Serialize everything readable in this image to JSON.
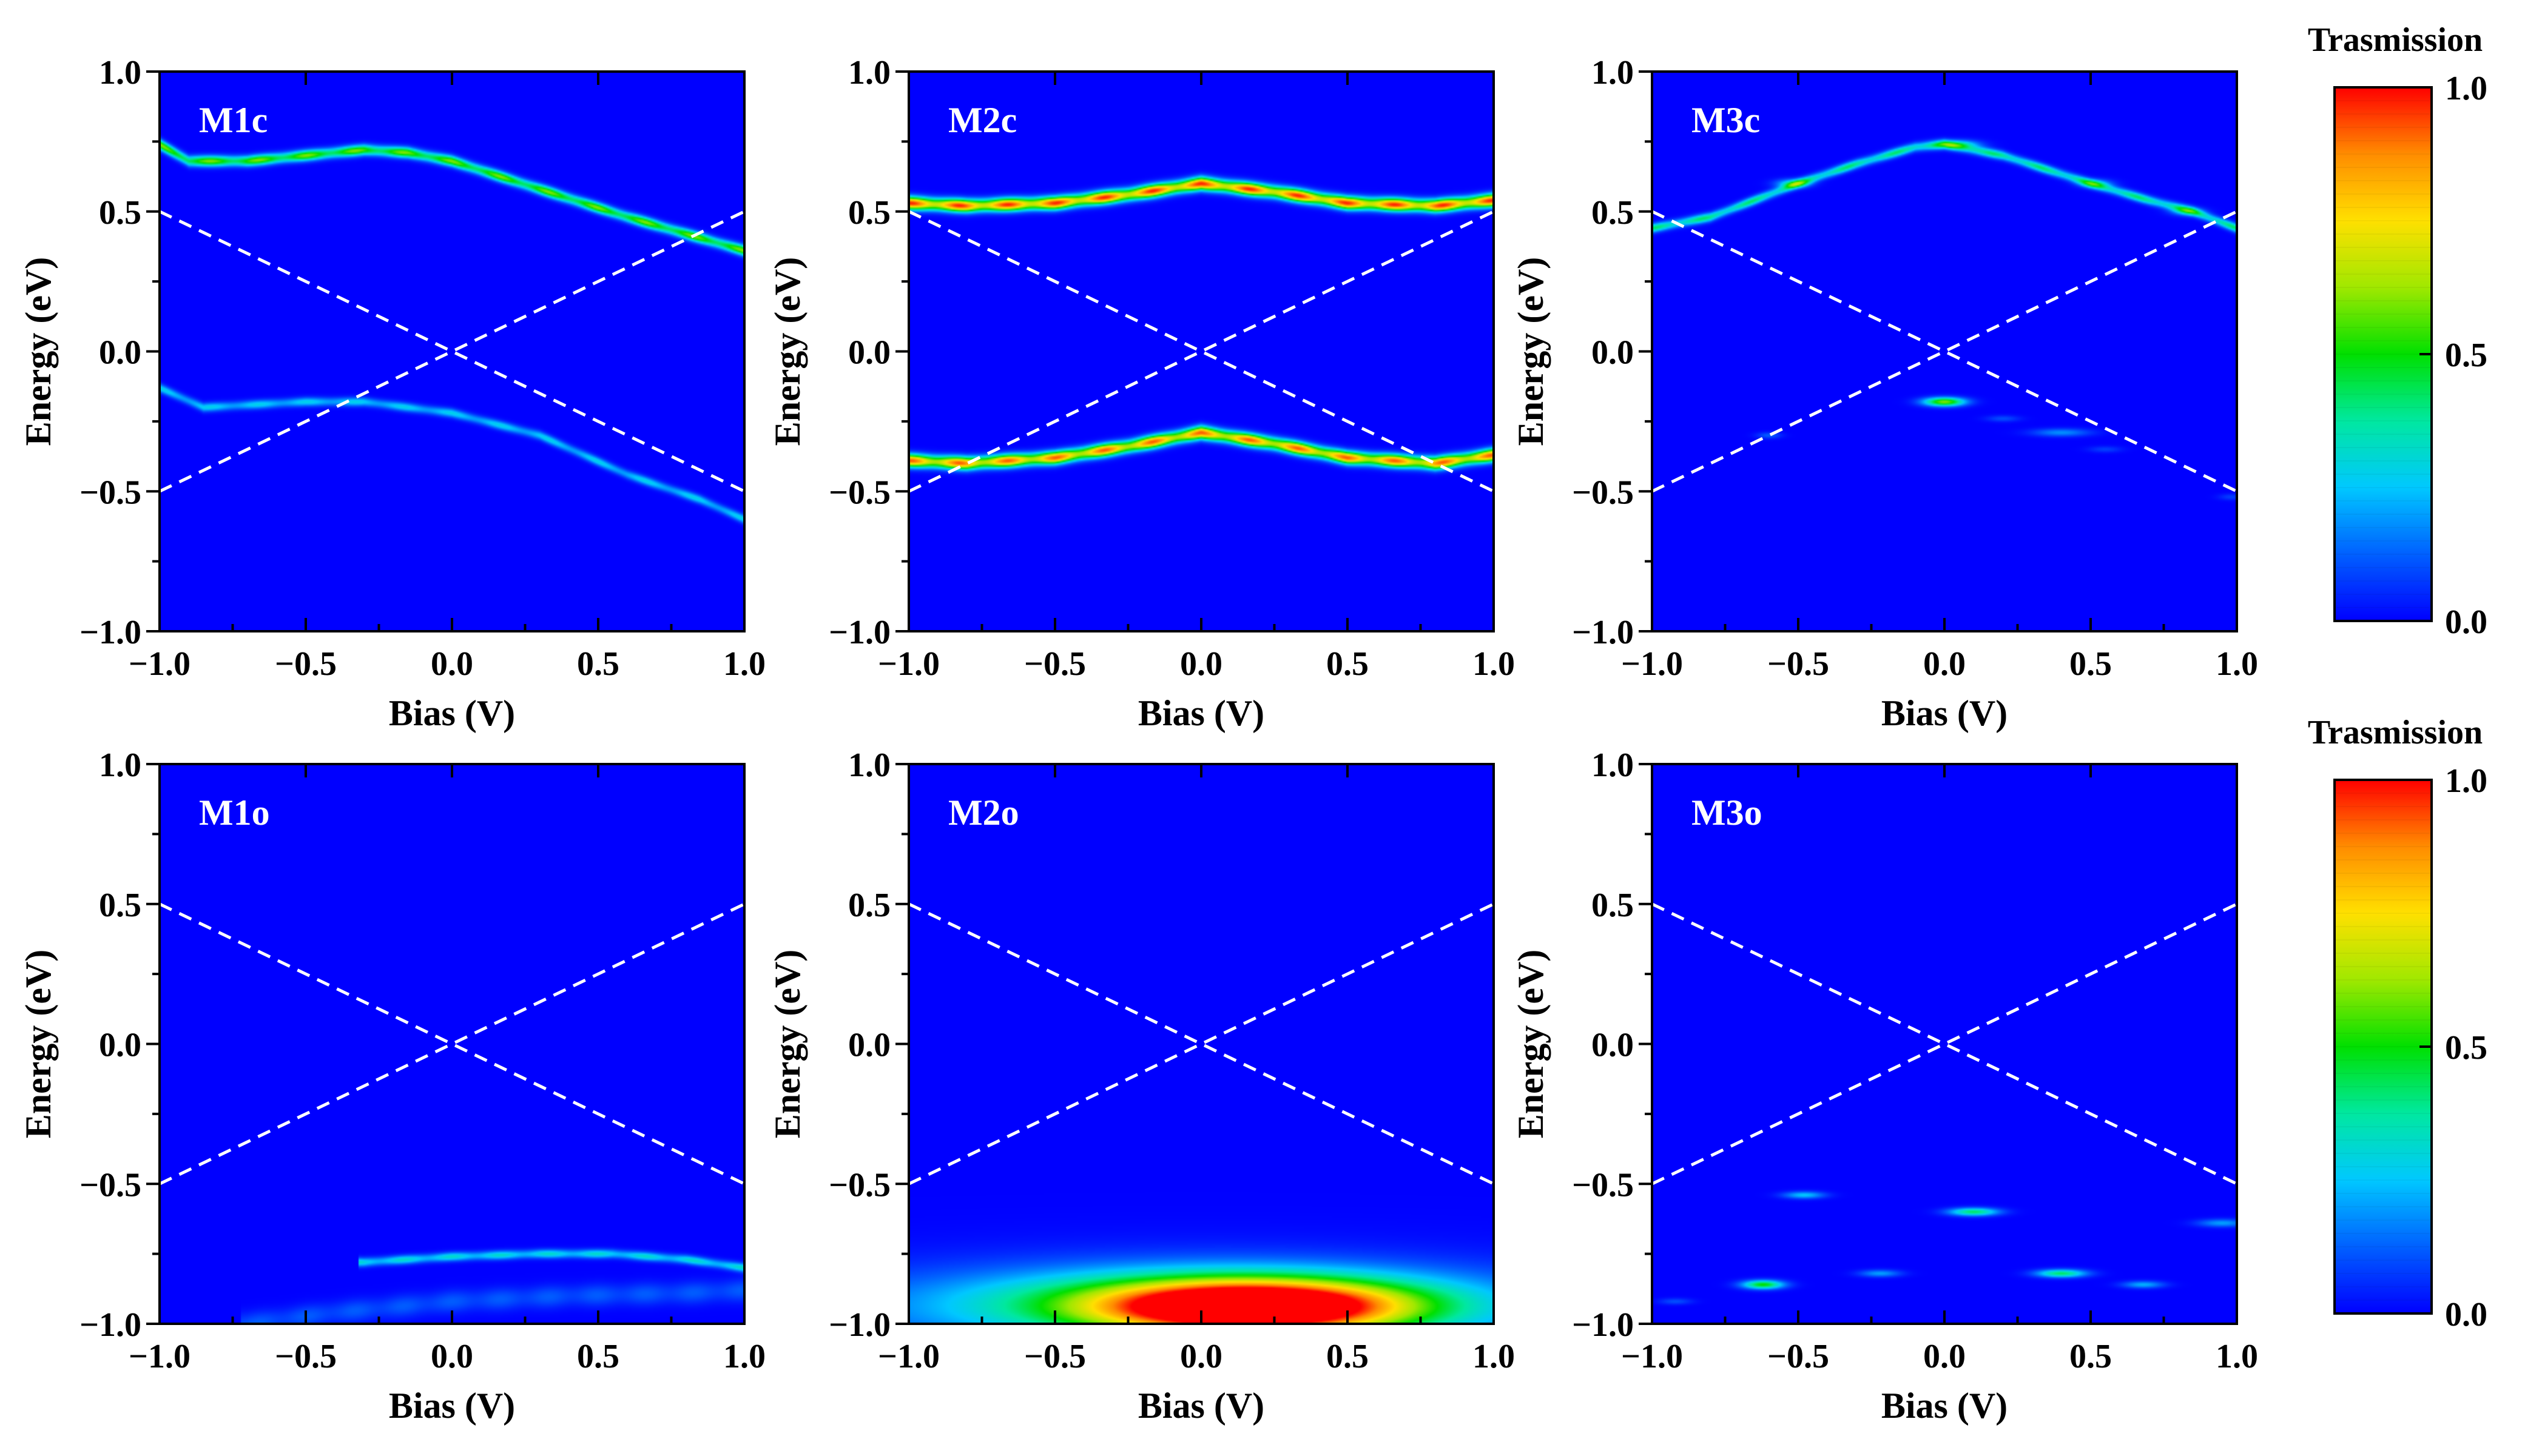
{
  "figure": {
    "colormap_stops": [
      "#0000ff",
      "#0060ff",
      "#00c8ff",
      "#00e8a0",
      "#00e000",
      "#a0e800",
      "#ffe000",
      "#ff8c00",
      "#ff0000"
    ],
    "dashed_line_color": "#ffffff"
  },
  "colorbars": [
    {
      "title": "Trasmission",
      "ticks": [
        {
          "value": 0.0,
          "label": "0.0"
        },
        {
          "value": 0.5,
          "label": "0.5"
        },
        {
          "value": 1.0,
          "label": "1.0"
        }
      ],
      "range": [
        0,
        1
      ]
    },
    {
      "title": "Trasmission",
      "ticks": [
        {
          "value": 0.0,
          "label": "0.0"
        },
        {
          "value": 0.5,
          "label": "0.5"
        },
        {
          "value": 1.0,
          "label": "1.0"
        }
      ],
      "range": [
        0,
        1
      ]
    }
  ],
  "chart_data": [
    {
      "type": "heatmap",
      "id": "M1c",
      "panel_label": "M1c",
      "xlabel": "Bias (V)",
      "ylabel": "Energy (eV)",
      "xlim": [
        -1,
        1
      ],
      "ylim": [
        -1,
        1
      ],
      "xticks": [
        "−1.0",
        "−0.5",
        "0.0",
        "0.5",
        "1.0"
      ],
      "yticks": [
        "−1.0",
        "−0.5",
        "0.0",
        "0.5",
        "1.0"
      ],
      "bias_window": [
        {
          "from": [
            -1,
            0.5
          ],
          "to": [
            1,
            -0.5
          ]
        },
        {
          "from": [
            -1,
            -0.5
          ],
          "to": [
            1,
            0.5
          ]
        }
      ],
      "features": [
        {
          "kind": "band",
          "points": [
            [
              -1.0,
              0.74
            ],
            [
              -0.9,
              0.68
            ],
            [
              -0.7,
              0.68
            ],
            [
              -0.5,
              0.7
            ],
            [
              -0.3,
              0.72
            ],
            [
              -0.15,
              0.71
            ],
            [
              0.0,
              0.68
            ],
            [
              0.3,
              0.58
            ],
            [
              0.6,
              0.48
            ],
            [
              0.8,
              0.42
            ],
            [
              1.0,
              0.36
            ]
          ],
          "sigma": 0.013,
          "peak": 0.6
        },
        {
          "kind": "band",
          "points": [
            [
              -1.0,
              -0.13
            ],
            [
              -0.85,
              -0.2
            ],
            [
              -0.5,
              -0.18
            ],
            [
              -0.3,
              -0.18
            ],
            [
              0.0,
              -0.22
            ],
            [
              0.3,
              -0.3
            ],
            [
              0.6,
              -0.44
            ],
            [
              0.85,
              -0.53
            ],
            [
              1.0,
              -0.6
            ]
          ],
          "sigma": 0.011,
          "peak": 0.28
        }
      ]
    },
    {
      "type": "heatmap",
      "id": "M2c",
      "panel_label": "M2c",
      "xlabel": "Bias (V)",
      "ylabel": "Energy (eV)",
      "xlim": [
        -1,
        1
      ],
      "ylim": [
        -1,
        1
      ],
      "xticks": [
        "−1.0",
        "−0.5",
        "0.0",
        "0.5",
        "1.0"
      ],
      "yticks": [
        "−1.0",
        "−0.5",
        "0.0",
        "0.5",
        "1.0"
      ],
      "bias_window": [
        {
          "from": [
            -1,
            0.5
          ],
          "to": [
            1,
            -0.5
          ]
        },
        {
          "from": [
            -1,
            -0.5
          ],
          "to": [
            1,
            0.5
          ]
        }
      ],
      "features": [
        {
          "kind": "band",
          "points": [
            [
              -1.0,
              0.53
            ],
            [
              -0.8,
              0.52
            ],
            [
              -0.5,
              0.53
            ],
            [
              -0.25,
              0.56
            ],
            [
              0.0,
              0.6
            ],
            [
              0.25,
              0.57
            ],
            [
              0.5,
              0.53
            ],
            [
              0.8,
              0.52
            ],
            [
              1.0,
              0.54
            ]
          ],
          "sigma": 0.016,
          "peak": 0.97
        },
        {
          "kind": "band",
          "points": [
            [
              -1.0,
              -0.39
            ],
            [
              -0.8,
              -0.4
            ],
            [
              -0.5,
              -0.38
            ],
            [
              -0.25,
              -0.34
            ],
            [
              0.0,
              -0.29
            ],
            [
              0.25,
              -0.33
            ],
            [
              0.5,
              -0.38
            ],
            [
              0.8,
              -0.4
            ],
            [
              1.0,
              -0.37
            ]
          ],
          "sigma": 0.016,
          "peak": 0.92
        }
      ]
    },
    {
      "type": "heatmap",
      "id": "M3c",
      "panel_label": "M3c",
      "xlabel": "Bias (V)",
      "ylabel": "Energy (eV)",
      "xlim": [
        -1,
        1
      ],
      "ylim": [
        -1,
        1
      ],
      "xticks": [
        "−1.0",
        "−0.5",
        "0.0",
        "0.5",
        "1.0"
      ],
      "yticks": [
        "−1.0",
        "−0.5",
        "0.0",
        "0.5",
        "1.0"
      ],
      "bias_window": [
        {
          "from": [
            -1,
            0.5
          ],
          "to": [
            1,
            -0.5
          ]
        },
        {
          "from": [
            -1,
            -0.5
          ],
          "to": [
            1,
            0.5
          ]
        }
      ],
      "features": [
        {
          "kind": "band",
          "points": [
            [
              -1.0,
              0.44
            ],
            [
              -0.8,
              0.48
            ],
            [
              -0.5,
              0.6
            ],
            [
              -0.3,
              0.67
            ],
            [
              -0.1,
              0.73
            ],
            [
              0.0,
              0.74
            ],
            [
              0.2,
              0.7
            ],
            [
              0.5,
              0.6
            ],
            [
              0.7,
              0.54
            ],
            [
              0.85,
              0.5
            ],
            [
              1.0,
              0.44
            ]
          ],
          "sigma": 0.011,
          "peak": 0.42
        },
        {
          "kind": "spot",
          "x": -0.52,
          "y": 0.6,
          "sx": 0.04,
          "sy": 0.011,
          "peak": 0.3
        },
        {
          "kind": "spot",
          "x": 0.05,
          "y": 0.74,
          "sx": 0.05,
          "sy": 0.011,
          "peak": 0.3
        },
        {
          "kind": "spot",
          "x": 0.52,
          "y": 0.6,
          "sx": 0.04,
          "sy": 0.011,
          "peak": 0.2
        },
        {
          "kind": "spot",
          "x": 0.83,
          "y": 0.5,
          "sx": 0.04,
          "sy": 0.011,
          "peak": 0.2
        },
        {
          "kind": "spot",
          "x": 0.0,
          "y": -0.18,
          "sx": 0.05,
          "sy": 0.011,
          "peak": 0.6
        },
        {
          "kind": "spot",
          "x": -0.6,
          "y": -0.3,
          "sx": 0.03,
          "sy": 0.008,
          "peak": 0.12
        },
        {
          "kind": "spot",
          "x": 0.4,
          "y": -0.29,
          "sx": 0.07,
          "sy": 0.01,
          "peak": 0.18
        },
        {
          "kind": "spot",
          "x": 0.2,
          "y": -0.24,
          "sx": 0.04,
          "sy": 0.008,
          "peak": 0.1
        },
        {
          "kind": "spot",
          "x": 0.55,
          "y": -0.35,
          "sx": 0.04,
          "sy": 0.008,
          "peak": 0.08
        },
        {
          "kind": "spot",
          "x": 0.98,
          "y": -0.52,
          "sx": 0.03,
          "sy": 0.008,
          "peak": 0.08
        }
      ]
    },
    {
      "type": "heatmap",
      "id": "M1o",
      "panel_label": "M1o",
      "xlabel": "Bias (V)",
      "ylabel": "Energy (eV)",
      "xlim": [
        -1,
        1
      ],
      "ylim": [
        -1,
        1
      ],
      "xticks": [
        "−1.0",
        "−0.5",
        "0.0",
        "0.5",
        "1.0"
      ],
      "yticks": [
        "−1.0",
        "−0.5",
        "0.0",
        "0.5",
        "1.0"
      ],
      "bias_window": [
        {
          "from": [
            -1,
            0.5
          ],
          "to": [
            1,
            -0.5
          ]
        },
        {
          "from": [
            -1,
            -0.5
          ],
          "to": [
            1,
            0.5
          ]
        }
      ],
      "features": [
        {
          "kind": "band",
          "points": [
            [
              -0.3,
              -0.78
            ],
            [
              0.0,
              -0.76
            ],
            [
              0.3,
              -0.75
            ],
            [
              0.55,
              -0.75
            ],
            [
              0.8,
              -0.77
            ],
            [
              1.0,
              -0.8
            ]
          ],
          "sigma": 0.011,
          "peak": 0.32
        },
        {
          "kind": "band",
          "points": [
            [
              -0.7,
              -1.0
            ],
            [
              -0.4,
              -0.96
            ],
            [
              0.0,
              -0.92
            ],
            [
              0.4,
              -0.9
            ],
            [
              0.8,
              -0.89
            ],
            [
              1.0,
              -0.88
            ]
          ],
          "sigma": 0.028,
          "peak": 0.12
        }
      ]
    },
    {
      "type": "heatmap",
      "id": "M2o",
      "panel_label": "M2o",
      "xlabel": "Bias (V)",
      "ylabel": "Energy (eV)",
      "xlim": [
        -1,
        1
      ],
      "ylim": [
        -1,
        1
      ],
      "xticks": [
        "−1.0",
        "−0.5",
        "0.0",
        "0.5",
        "1.0"
      ],
      "yticks": [
        "−1.0",
        "−0.5",
        "0.0",
        "0.5",
        "1.0"
      ],
      "bias_window": [
        {
          "from": [
            -1,
            0.5
          ],
          "to": [
            1,
            -0.5
          ]
        },
        {
          "from": [
            -1,
            -0.5
          ],
          "to": [
            1,
            0.5
          ]
        }
      ],
      "features": [
        {
          "kind": "blob",
          "x": 0.18,
          "y": -0.94,
          "sx": 0.35,
          "sy": 0.065,
          "peak": 0.98
        },
        {
          "kind": "blob",
          "x": 0.05,
          "y": -0.93,
          "sx": 0.62,
          "sy": 0.085,
          "peak": 0.45
        },
        {
          "kind": "blob",
          "x": 0.0,
          "y": -0.95,
          "sx": 1.1,
          "sy": 0.13,
          "peak": 0.12
        }
      ]
    },
    {
      "type": "heatmap",
      "id": "M3o",
      "panel_label": "M3o",
      "xlabel": "Bias (V)",
      "ylabel": "Energy (eV)",
      "xlim": [
        -1,
        1
      ],
      "ylim": [
        -1,
        1
      ],
      "xticks": [
        "−1.0",
        "−0.5",
        "0.0",
        "0.5",
        "1.0"
      ],
      "yticks": [
        "−1.0",
        "−0.5",
        "0.0",
        "0.5",
        "1.0"
      ],
      "bias_window": [
        {
          "from": [
            -1,
            0.5
          ],
          "to": [
            1,
            -0.5
          ]
        },
        {
          "from": [
            -1,
            -0.5
          ],
          "to": [
            1,
            0.5
          ]
        }
      ],
      "features": [
        {
          "kind": "spot",
          "x": -0.62,
          "y": -0.86,
          "sx": 0.05,
          "sy": 0.011,
          "peak": 0.5
        },
        {
          "kind": "spot",
          "x": -0.48,
          "y": -0.54,
          "sx": 0.05,
          "sy": 0.009,
          "peak": 0.25
        },
        {
          "kind": "spot",
          "x": -0.22,
          "y": -0.82,
          "sx": 0.05,
          "sy": 0.009,
          "peak": 0.2
        },
        {
          "kind": "spot",
          "x": 0.1,
          "y": -0.6,
          "sx": 0.06,
          "sy": 0.01,
          "peak": 0.42
        },
        {
          "kind": "spot",
          "x": 0.4,
          "y": -0.82,
          "sx": 0.06,
          "sy": 0.01,
          "peak": 0.42
        },
        {
          "kind": "spot",
          "x": 0.68,
          "y": -0.86,
          "sx": 0.05,
          "sy": 0.009,
          "peak": 0.22
        },
        {
          "kind": "spot",
          "x": 0.95,
          "y": -0.64,
          "sx": 0.06,
          "sy": 0.01,
          "peak": 0.2
        },
        {
          "kind": "spot",
          "x": -0.92,
          "y": -0.92,
          "sx": 0.04,
          "sy": 0.008,
          "peak": 0.1
        }
      ]
    }
  ]
}
